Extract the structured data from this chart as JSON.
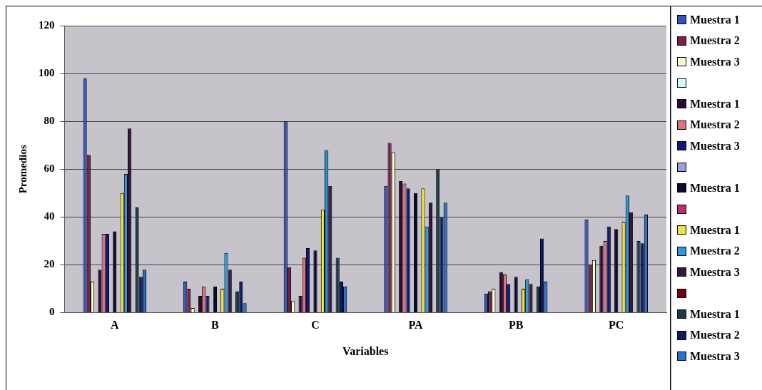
{
  "chart_data": {
    "type": "bar",
    "xlabel": "Variables",
    "ylabel": "Promedios",
    "categories": [
      "A",
      "B",
      "C",
      "PA",
      "PB",
      "PC"
    ],
    "ylim": [
      0,
      120
    ],
    "yticks": [
      0,
      20,
      40,
      60,
      80,
      100,
      120
    ],
    "grid": "y",
    "legend": "right",
    "series": [
      {
        "name": "Muestra 1",
        "color": "#3355bb",
        "values": [
          98,
          13,
          80,
          53,
          8,
          39
        ]
      },
      {
        "name": "Muestra 2",
        "color": "#7a1f4a",
        "values": [
          66,
          10,
          19,
          71,
          9,
          20
        ]
      },
      {
        "name": "Muestra 3",
        "color": "#ffffcc",
        "values": [
          13,
          2,
          5,
          67,
          10,
          22
        ]
      },
      {
        "color": "#ccffff",
        "values": [
          null,
          null,
          null,
          null,
          null,
          null
        ]
      },
      {
        "name": "Muestra 1",
        "color": "#2a0a35",
        "values": [
          18,
          7,
          7,
          55,
          17,
          28
        ]
      },
      {
        "name": "Muestra 2",
        "color": "#e07080",
        "values": [
          33,
          11,
          23,
          54,
          16,
          30
        ]
      },
      {
        "name": "Muestra 3",
        "color": "#101880",
        "values": [
          33,
          7,
          27,
          52,
          12,
          36
        ]
      },
      {
        "color": "#99a0e0",
        "values": [
          null,
          null,
          null,
          null,
          null,
          null
        ]
      },
      {
        "name": "Muestra 1",
        "color": "#0a0a30",
        "values": [
          34,
          11,
          26,
          50,
          15,
          35
        ]
      },
      {
        "color": "#c02a7a",
        "values": [
          null,
          null,
          null,
          null,
          null,
          null
        ]
      },
      {
        "name": "Muestra 1",
        "color": "#f0e040",
        "values": [
          50,
          10,
          43,
          52,
          10,
          38
        ]
      },
      {
        "name": "Muestra 2",
        "color": "#2a9ae0",
        "values": [
          58,
          25,
          68,
          36,
          14,
          49
        ]
      },
      {
        "name": "Muestra 3",
        "color": "#3a1545",
        "values": [
          77,
          18,
          53,
          46,
          12,
          42
        ]
      },
      {
        "color": "#700010",
        "values": [
          null,
          null,
          null,
          null,
          null,
          null
        ]
      },
      {
        "name": "Muestra 1",
        "color": "#1a3a4a",
        "values": [
          44,
          9,
          23,
          60,
          11,
          30
        ]
      },
      {
        "name": "Muestra 2",
        "color": "#0a1a6a",
        "values": [
          15,
          13,
          13,
          40,
          31,
          29
        ]
      },
      {
        "name": "Muestra 3",
        "color": "#2a70d0",
        "values": [
          18,
          4,
          11,
          46,
          13,
          41
        ]
      }
    ]
  }
}
